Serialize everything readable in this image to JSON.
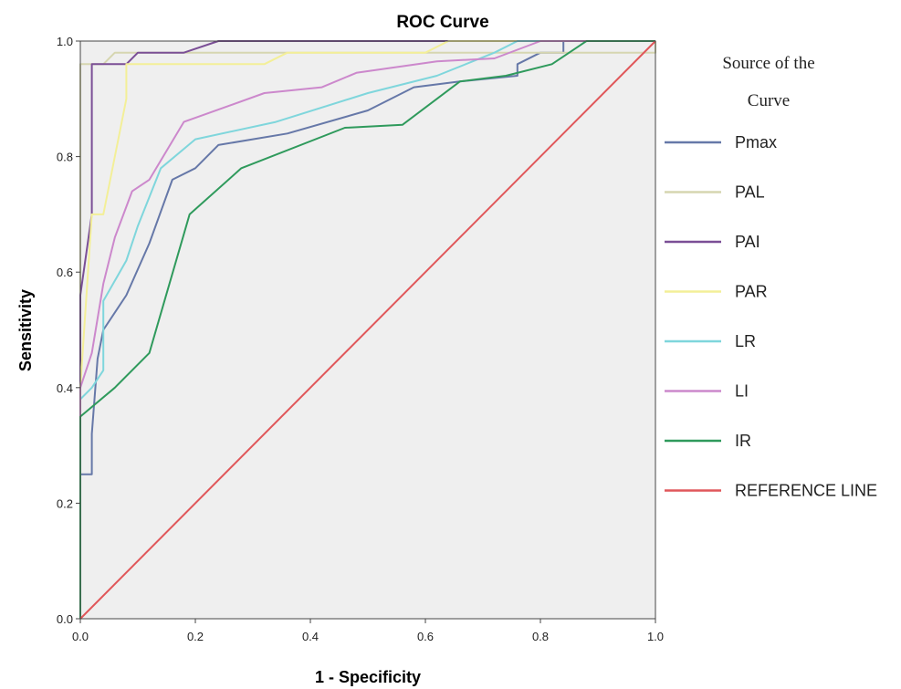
{
  "chart_data": {
    "type": "line",
    "title": "ROC Curve",
    "xlabel": "1 - Specificity",
    "ylabel": "Sensitivity",
    "xlim": [
      0,
      1
    ],
    "ylim": [
      0,
      1
    ],
    "xticks": [
      "0.0",
      "0.2",
      "0.4",
      "0.6",
      "0.8",
      "1.0"
    ],
    "yticks": [
      "0.0",
      "0.2",
      "0.4",
      "0.6",
      "0.8",
      "1.0"
    ],
    "grid": false,
    "background": "#efefef",
    "legend": {
      "title_lines": [
        "Source of the",
        "Curve"
      ],
      "placement": "right"
    },
    "series": [
      {
        "name": "Pmax",
        "color": "#6678a8",
        "points": [
          [
            0,
            0
          ],
          [
            0,
            0.25
          ],
          [
            0.02,
            0.25
          ],
          [
            0.02,
            0.32
          ],
          [
            0.03,
            0.45
          ],
          [
            0.04,
            0.5
          ],
          [
            0.08,
            0.56
          ],
          [
            0.12,
            0.65
          ],
          [
            0.16,
            0.76
          ],
          [
            0.2,
            0.78
          ],
          [
            0.24,
            0.82
          ],
          [
            0.36,
            0.84
          ],
          [
            0.5,
            0.88
          ],
          [
            0.58,
            0.92
          ],
          [
            0.66,
            0.93
          ],
          [
            0.76,
            0.94
          ],
          [
            0.76,
            0.96
          ],
          [
            0.8,
            0.98
          ],
          [
            0.84,
            0.98
          ],
          [
            0.84,
            1.0
          ],
          [
            1,
            1
          ]
        ]
      },
      {
        "name": "PAL",
        "color": "#d6d6b0",
        "points": [
          [
            0,
            0
          ],
          [
            0,
            0.96
          ],
          [
            0.04,
            0.96
          ],
          [
            0.06,
            0.98
          ],
          [
            0.1,
            0.98
          ],
          [
            0.14,
            0.98
          ],
          [
            0.96,
            0.98
          ],
          [
            1,
            0.98
          ],
          [
            1,
            1
          ]
        ]
      },
      {
        "name": "PAI",
        "color": "#7b4f96",
        "points": [
          [
            0,
            0
          ],
          [
            0,
            0.56
          ],
          [
            0.02,
            0.7
          ],
          [
            0.02,
            0.96
          ],
          [
            0.08,
            0.96
          ],
          [
            0.1,
            0.98
          ],
          [
            0.18,
            0.98
          ],
          [
            0.24,
            1.0
          ],
          [
            1,
            1
          ]
        ]
      },
      {
        "name": "PAR",
        "color": "#f3ef98",
        "points": [
          [
            0,
            0
          ],
          [
            0,
            0.4
          ],
          [
            0.02,
            0.7
          ],
          [
            0.04,
            0.7
          ],
          [
            0.06,
            0.8
          ],
          [
            0.08,
            0.9
          ],
          [
            0.08,
            0.96
          ],
          [
            0.32,
            0.96
          ],
          [
            0.36,
            0.98
          ],
          [
            0.6,
            0.98
          ],
          [
            0.64,
            1.0
          ],
          [
            1,
            1
          ]
        ]
      },
      {
        "name": "LR",
        "color": "#7fd6dc",
        "points": [
          [
            0,
            0
          ],
          [
            0,
            0.38
          ],
          [
            0.02,
            0.4
          ],
          [
            0.04,
            0.43
          ],
          [
            0.04,
            0.55
          ],
          [
            0.08,
            0.62
          ],
          [
            0.1,
            0.68
          ],
          [
            0.14,
            0.78
          ],
          [
            0.2,
            0.83
          ],
          [
            0.34,
            0.86
          ],
          [
            0.5,
            0.91
          ],
          [
            0.62,
            0.94
          ],
          [
            0.72,
            0.98
          ],
          [
            0.76,
            1.0
          ],
          [
            1,
            1
          ]
        ]
      },
      {
        "name": "LI",
        "color": "#cc88cc",
        "points": [
          [
            0,
            0
          ],
          [
            0,
            0.4
          ],
          [
            0.02,
            0.46
          ],
          [
            0.04,
            0.58
          ],
          [
            0.06,
            0.66
          ],
          [
            0.09,
            0.74
          ],
          [
            0.12,
            0.76
          ],
          [
            0.18,
            0.86
          ],
          [
            0.32,
            0.91
          ],
          [
            0.42,
            0.92
          ],
          [
            0.48,
            0.945
          ],
          [
            0.62,
            0.965
          ],
          [
            0.72,
            0.97
          ],
          [
            0.8,
            1.0
          ],
          [
            1,
            1
          ]
        ]
      },
      {
        "name": "IR",
        "color": "#2f9a5c",
        "points": [
          [
            0,
            0
          ],
          [
            0,
            0.35
          ],
          [
            0.06,
            0.4
          ],
          [
            0.12,
            0.46
          ],
          [
            0.19,
            0.7
          ],
          [
            0.28,
            0.78
          ],
          [
            0.46,
            0.85
          ],
          [
            0.56,
            0.855
          ],
          [
            0.66,
            0.93
          ],
          [
            0.74,
            0.94
          ],
          [
            0.82,
            0.96
          ],
          [
            0.88,
            1.0
          ],
          [
            1,
            1
          ]
        ]
      },
      {
        "name": "REFERENCE LINE",
        "color": "#e0575a",
        "points": [
          [
            0,
            0
          ],
          [
            1,
            1
          ]
        ]
      }
    ]
  }
}
